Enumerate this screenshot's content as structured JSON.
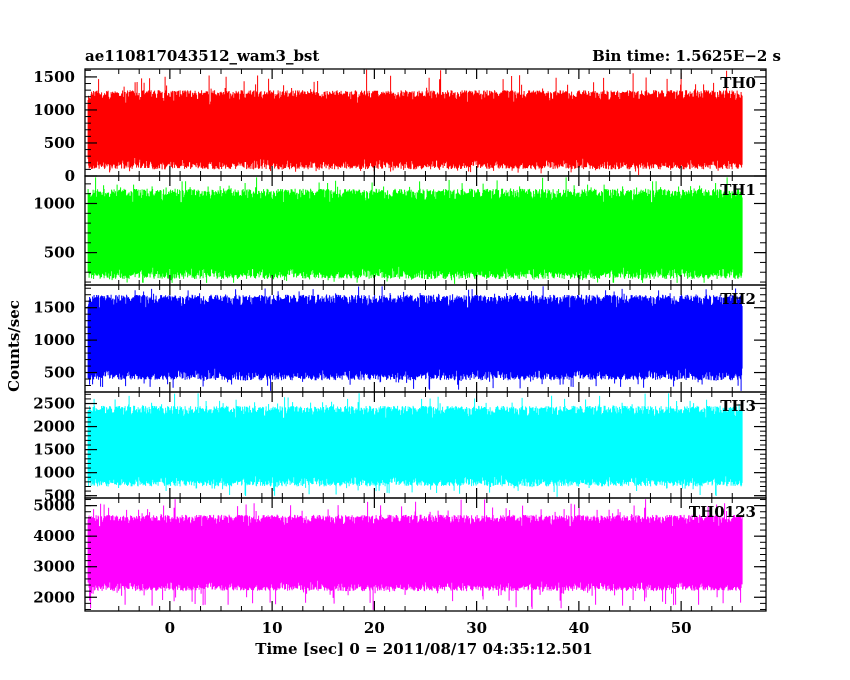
{
  "header": {
    "left_title": "ae110817043512_wam3_bst",
    "right_title": "Bin time: 1.5625E−2 s"
  },
  "chart_data": {
    "type": "line",
    "xlabel": "Time [sec] 0 = 2011/08/17 04:35:12.501",
    "ylabel": "Counts/sec",
    "xlim": [
      -8.3,
      58.3
    ],
    "x_ticks": [
      0,
      10,
      20,
      30,
      40,
      50
    ],
    "x_tick_labels": [
      "0",
      "10",
      "20",
      "30",
      "40",
      "50"
    ],
    "x_data_range": [
      -8,
      56
    ],
    "bin_time": 0.015625,
    "grid": false,
    "panels": [
      {
        "name": "TH0",
        "color": "#ff0000",
        "ylim": [
          0,
          1620
        ],
        "y_ticks": [
          0,
          500,
          1000,
          1500
        ],
        "y_tick_labels": [
          "0",
          "500",
          "1000",
          "1500"
        ],
        "typical_range": [
          100,
          1300
        ],
        "peak": 1620,
        "mean": 650
      },
      {
        "name": "TH1",
        "color": "#00ff00",
        "ylim": [
          170,
          1280
        ],
        "y_ticks": [
          500,
          1000
        ],
        "y_tick_labels": [
          "500",
          "1000"
        ],
        "typical_range": [
          230,
          1150
        ],
        "peak": 1280,
        "mean": 700
      },
      {
        "name": "TH2",
        "color": "#0000ff",
        "ylim": [
          200,
          1850
        ],
        "y_ticks": [
          500,
          1000,
          1500
        ],
        "y_tick_labels": [
          "500",
          "1000",
          "1500"
        ],
        "typical_range": [
          380,
          1700
        ],
        "peak": 1850,
        "mean": 1000
      },
      {
        "name": "TH3",
        "color": "#00ffff",
        "ylim": [
          450,
          2750
        ],
        "y_ticks": [
          500,
          1000,
          1500,
          2000,
          2500
        ],
        "y_tick_labels": [
          "500",
          "1000",
          "1500",
          "2000",
          "2500"
        ],
        "typical_range": [
          700,
          2450
        ],
        "peak": 2750,
        "mean": 1600
      },
      {
        "name": "TH0123",
        "color": "#ff00ff",
        "ylim": [
          1550,
          5250
        ],
        "y_ticks": [
          2000,
          3000,
          4000,
          5000
        ],
        "y_tick_labels": [
          "2000",
          "3000",
          "4000",
          "5000"
        ],
        "typical_range": [
          2200,
          4700
        ],
        "peak": 5250,
        "mean": 3300
      }
    ]
  }
}
